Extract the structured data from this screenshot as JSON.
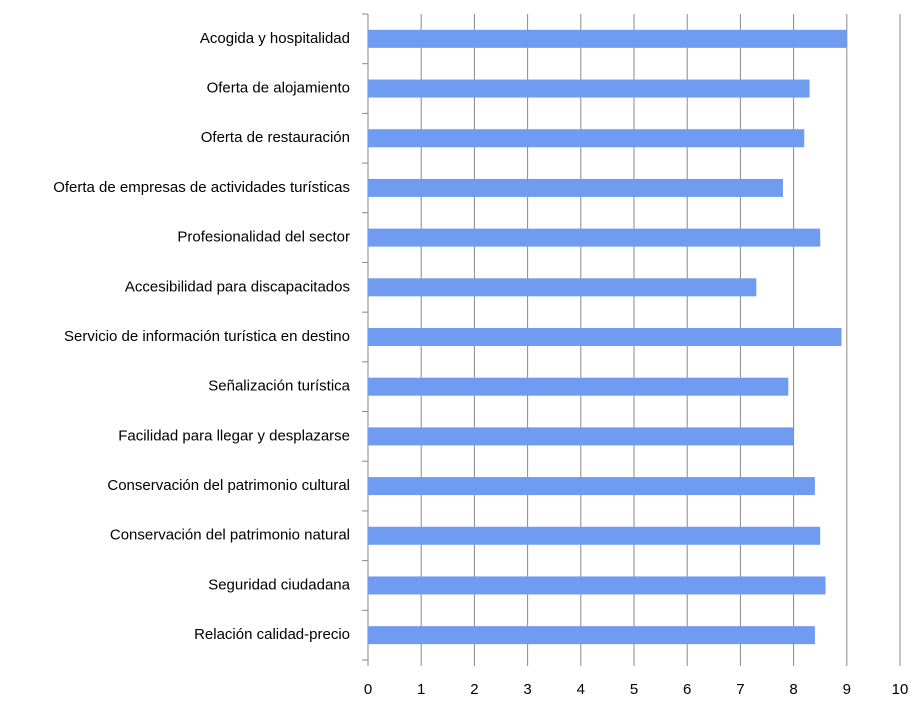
{
  "chart_data": {
    "type": "barh",
    "categories": [
      "Acogida y hospitalidad",
      "Oferta de alojamiento",
      "Oferta de restauración",
      "Oferta de empresas de actividades turísticas",
      "Profesionalidad del sector",
      "Accesibilidad para discapacitados",
      "Servicio de información turística en destino",
      "Señalización turística",
      "Facilidad para llegar y desplazarse",
      "Conservación del patrimonio cultural",
      "Conservación del patrimonio natural",
      "Seguridad ciudadana",
      "Relación calidad-precio"
    ],
    "values": [
      9.0,
      8.3,
      8.2,
      7.8,
      8.5,
      7.3,
      8.9,
      7.9,
      8.0,
      8.4,
      8.5,
      8.6,
      8.4
    ],
    "color": "#6f9cf0",
    "xlim": [
      0,
      10
    ],
    "xticks": [
      0,
      1,
      2,
      3,
      4,
      5,
      6,
      7,
      8,
      9,
      10
    ],
    "grid": true
  }
}
